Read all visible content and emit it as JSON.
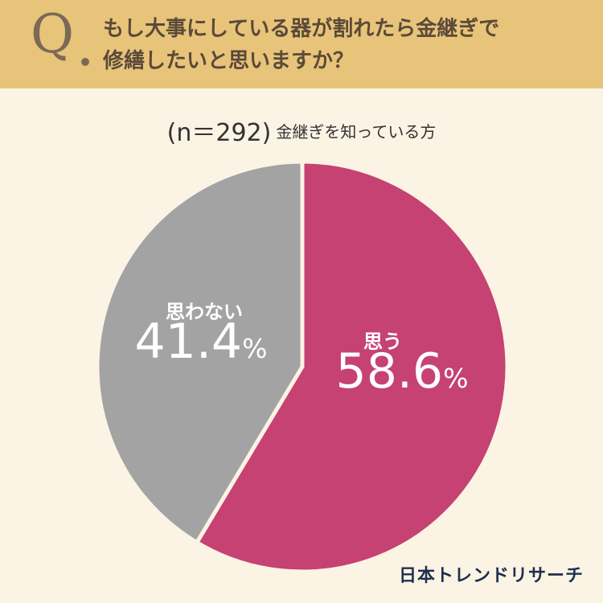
{
  "header": {
    "q_mark": "Q",
    "question_line1": "もし大事にしている器が割れたら金継ぎで",
    "question_line2": "修繕したいと思いますか？"
  },
  "subtitle": {
    "sample_size": "(n＝292)",
    "respondents": "金継ぎを知っている方"
  },
  "chart_data": {
    "type": "pie",
    "start_angle_deg": 0,
    "direction": "clockwise",
    "slices": [
      {
        "label": "思う",
        "value": 58.6,
        "value_text": "58.6",
        "unit": "%",
        "color": "#c54272"
      },
      {
        "label": "思わない",
        "value": 41.4,
        "value_text": "41.4",
        "unit": "%",
        "color": "#a3a3a3"
      }
    ]
  },
  "brand": "日本トレンドリサーチ",
  "colors": {
    "background": "#fbf3e4",
    "header": "#e8c47a",
    "accent": "#c54272",
    "secondary": "#a3a3a3"
  }
}
